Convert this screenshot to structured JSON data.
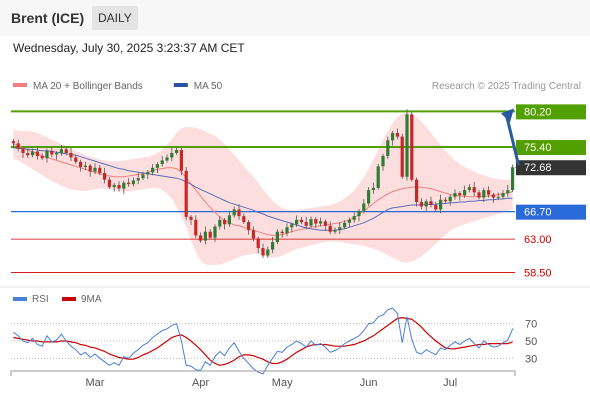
{
  "header": {
    "instrument": "Brent (ICE)",
    "interval": "DAILY",
    "timestamp": "Wednesday, July 30, 2025 3:23:37 AM CET"
  },
  "chart_data": [
    {
      "type": "line",
      "description": "candlestick price chart",
      "legend": [
        {
          "name": "MA 20 + Bollinger Bands",
          "color": "#f08080"
        },
        {
          "name": "MA 50",
          "color": "#2a52a0"
        }
      ],
      "credit": "Research © 2025 Trading Central",
      "x_labels": [
        "Mar",
        "Apr",
        "May",
        "Jun",
        "Jul"
      ],
      "ylim": [
        57.5,
        82
      ],
      "levels": [
        {
          "value": 80.2,
          "label": "80.20",
          "kind": "resistance",
          "color": "#52a000"
        },
        {
          "value": 75.4,
          "label": "75.40",
          "kind": "resistance",
          "color": "#52a000"
        },
        {
          "value": 72.68,
          "label": "72.68",
          "kind": "last",
          "color": "#333333"
        },
        {
          "value": 66.7,
          "label": "66.70",
          "kind": "pivot",
          "color": "#2a6ad8"
        },
        {
          "value": 63.0,
          "label": "63.00",
          "kind": "support",
          "color": "#cc0000"
        },
        {
          "value": 58.5,
          "label": "58.50",
          "kind": "support",
          "color": "#cc0000"
        }
      ],
      "forecast_arrow": {
        "from": 72.68,
        "to": 80.2
      },
      "closes": [
        75.9,
        75.2,
        74.6,
        74.3,
        74.8,
        74.2,
        73.9,
        74.9,
        74.4,
        74.6,
        75.1,
        74.6,
        74.0,
        73.4,
        72.7,
        72.9,
        72.1,
        72.6,
        71.9,
        71.0,
        70.0,
        70.3,
        69.8,
        70.6,
        70.4,
        70.9,
        71.2,
        71.7,
        72.0,
        72.6,
        73.1,
        73.6,
        74.0,
        74.6,
        75.0,
        72.2,
        66.0,
        65.6,
        63.5,
        62.8,
        64.0,
        63.2,
        64.7,
        65.6,
        65.0,
        66.2,
        67.0,
        66.1,
        65.3,
        64.2,
        63.1,
        61.8,
        60.8,
        61.6,
        62.6,
        64.0,
        63.8,
        64.6,
        65.0,
        65.6,
        65.3,
        64.8,
        65.7,
        65.1,
        65.4,
        64.8,
        64.0,
        64.2,
        64.6,
        65.2,
        65.6,
        66.1,
        66.8,
        67.8,
        69.6,
        69.9,
        72.8,
        74.2,
        76.3,
        77.3,
        76.8,
        71.4,
        79.8,
        71.0,
        68.0,
        67.4,
        68.1,
        67.6,
        67.0,
        68.3,
        68.1,
        68.7,
        69.2,
        68.9,
        69.6,
        70.0,
        69.3,
        68.6,
        69.6,
        69.0,
        68.6,
        68.7,
        69.2,
        69.6,
        72.68
      ],
      "ma20": [
        75.8,
        75.6,
        75.3,
        75.0,
        74.8,
        74.5,
        74.2,
        74.0,
        73.8,
        73.6,
        73.4,
        73.2,
        73.0,
        72.8,
        72.6,
        72.4,
        72.2,
        72.0,
        71.8,
        71.6,
        71.5,
        71.4,
        71.4,
        71.4,
        71.5,
        71.6,
        71.7,
        71.8,
        72.0,
        72.2,
        72.4,
        72.5,
        72.6,
        72.6,
        72.5,
        72.0,
        71.3,
        70.4,
        69.6,
        68.8,
        68.0,
        67.3,
        66.6,
        66.0,
        65.5,
        65.2,
        64.9,
        64.8,
        64.6,
        64.4,
        64.2,
        64.0,
        63.8,
        63.6,
        63.5,
        63.5,
        63.6,
        63.8,
        64.0,
        64.2,
        64.3,
        64.5,
        64.6,
        64.7,
        64.8,
        64.9,
        65.0,
        65.1,
        65.2,
        65.4,
        65.6,
        65.9,
        66.3,
        66.8,
        67.3,
        67.8,
        68.3,
        68.7,
        69.1,
        69.4,
        69.6,
        69.8,
        69.9,
        70.0,
        70.0,
        70.0,
        69.9,
        69.8,
        69.6,
        69.4,
        69.2,
        69.0,
        68.9,
        68.8,
        68.8,
        68.7,
        68.7,
        68.7,
        68.8,
        68.8,
        68.9,
        69.0,
        69.1,
        69.2,
        69.4
      ],
      "bb_upper": [
        77.8,
        77.6,
        77.6,
        77.6,
        77.5,
        77.3,
        77.0,
        76.7,
        76.4,
        76.1,
        75.8,
        75.5,
        75.2,
        74.9,
        74.6,
        74.3,
        74.1,
        73.9,
        73.7,
        73.6,
        73.5,
        73.5,
        73.5,
        73.6,
        73.7,
        73.8,
        73.9,
        74.0,
        74.1,
        74.3,
        74.6,
        75.1,
        75.7,
        76.4,
        77.3,
        77.9,
        78.1,
        78.1,
        78.0,
        77.8,
        77.5,
        77.2,
        76.9,
        76.4,
        75.8,
        75.1,
        74.4,
        73.6,
        72.8,
        72.1,
        71.4,
        70.6,
        69.7,
        68.9,
        68.2,
        67.6,
        67.2,
        67.0,
        66.9,
        66.9,
        67.0,
        67.1,
        67.2,
        67.3,
        67.4,
        67.5,
        67.6,
        67.8,
        68.1,
        68.5,
        69.0,
        69.6,
        70.4,
        71.4,
        72.5,
        73.7,
        75.0,
        76.4,
        77.6,
        78.6,
        79.4,
        79.9,
        80.0,
        79.8,
        79.4,
        78.8,
        78.1,
        77.3,
        76.5,
        75.7,
        74.9,
        74.2,
        73.6,
        73.1,
        72.7,
        72.4,
        72.1,
        71.8,
        71.6,
        71.4,
        71.2,
        71.1,
        71.0,
        71.0,
        71.1
      ],
      "bb_lower": [
        73.8,
        73.6,
        73.2,
        72.8,
        72.4,
        72.0,
        71.6,
        71.2,
        70.8,
        70.5,
        70.2,
        69.9,
        69.7,
        69.6,
        69.5,
        69.5,
        69.6,
        69.7,
        69.8,
        69.8,
        69.7,
        69.6,
        69.5,
        69.4,
        69.4,
        69.5,
        69.6,
        69.7,
        69.8,
        69.9,
        69.9,
        69.6,
        69.1,
        68.4,
        67.3,
        66.0,
        64.6,
        62.8,
        61.3,
        60.1,
        59.6,
        59.5,
        59.5,
        59.6,
        59.8,
        60.0,
        60.3,
        60.6,
        60.8,
        60.9,
        61.0,
        61.0,
        60.8,
        60.6,
        60.5,
        60.6,
        60.8,
        61.1,
        61.4,
        61.7,
        61.8,
        62.0,
        62.2,
        62.3,
        62.5,
        62.6,
        62.7,
        62.7,
        62.6,
        62.5,
        62.4,
        62.3,
        62.2,
        62.1,
        61.9,
        61.7,
        61.5,
        61.2,
        60.8,
        60.5,
        60.2,
        59.9,
        59.8,
        60.0,
        60.3,
        60.7,
        61.2,
        61.8,
        62.4,
        63.0,
        63.6,
        64.1,
        64.5,
        64.8,
        65.0,
        65.2,
        65.4,
        65.6,
        65.8,
        66.0,
        66.2,
        66.4,
        66.6,
        66.8,
        67.0
      ],
      "ma50": [
        75.3,
        75.2,
        75.2,
        75.1,
        75.1,
        75.0,
        74.9,
        74.9,
        74.8,
        74.7,
        74.6,
        74.5,
        74.4,
        74.3,
        74.1,
        73.9,
        73.7,
        73.5,
        73.3,
        73.1,
        72.9,
        72.7,
        72.5,
        72.4,
        72.2,
        72.1,
        72.0,
        71.9,
        71.8,
        71.7,
        71.6,
        71.5,
        71.4,
        71.3,
        71.2,
        71.0,
        70.7,
        70.4,
        70.0,
        69.7,
        69.4,
        69.1,
        68.8,
        68.5,
        68.2,
        67.9,
        67.7,
        67.5,
        67.3,
        67.1,
        66.9,
        66.6,
        66.4,
        66.1,
        65.9,
        65.7,
        65.5,
        65.3,
        65.1,
        64.9,
        64.7,
        64.5,
        64.4,
        64.3,
        64.2,
        64.2,
        64.2,
        64.2,
        64.3,
        64.4,
        64.6,
        64.8,
        65.0,
        65.2,
        65.5,
        65.8,
        66.2,
        66.6,
        67.0,
        67.2,
        67.3,
        67.4,
        67.5,
        67.6,
        67.6,
        67.6,
        67.7,
        67.7,
        67.7,
        67.8,
        67.8,
        67.9,
        67.9,
        68.0,
        68.0,
        68.1,
        68.1,
        68.2,
        68.2,
        68.3,
        68.3,
        68.4,
        68.4,
        68.5,
        68.5
      ]
    },
    {
      "type": "line",
      "description": "RSI oscillator",
      "legend": [
        {
          "name": "RSI",
          "color": "#4a7fd8"
        },
        {
          "name": "9MA",
          "color": "#cc0000"
        }
      ],
      "ylim": [
        20,
        80
      ],
      "ticks": [
        70,
        50,
        30
      ],
      "rsi": [
        60,
        56,
        50,
        48,
        53,
        46,
        44,
        56,
        49,
        51,
        58,
        50,
        44,
        40,
        34,
        37,
        31,
        35,
        30,
        26,
        22,
        25,
        22,
        32,
        30,
        36,
        40,
        45,
        48,
        54,
        58,
        62,
        64,
        68,
        70,
        50,
        22,
        21,
        17,
        16,
        26,
        22,
        32,
        38,
        33,
        42,
        48,
        38,
        30,
        24,
        18,
        14,
        12,
        22,
        30,
        38,
        37,
        43,
        46,
        50,
        47,
        43,
        50,
        45,
        47,
        43,
        37,
        39,
        42,
        47,
        50,
        53,
        56,
        62,
        70,
        71,
        78,
        80,
        86,
        88,
        82,
        48,
        78,
        52,
        37,
        35,
        40,
        37,
        34,
        42,
        40,
        45,
        49,
        46,
        50,
        53,
        47,
        42,
        50,
        46,
        43,
        44,
        48,
        51,
        64
      ],
      "ma9": [
        54,
        53,
        52,
        51,
        50,
        50,
        49,
        49,
        49,
        49,
        50,
        50,
        49,
        48,
        46,
        45,
        43,
        42,
        40,
        38,
        35,
        33,
        31,
        30,
        29,
        29,
        31,
        34,
        36,
        39,
        42,
        46,
        50,
        54,
        56,
        57,
        54,
        50,
        45,
        40,
        34,
        28,
        24,
        22,
        23,
        25,
        28,
        32,
        34,
        34,
        33,
        31,
        29,
        26,
        24,
        24,
        26,
        29,
        33,
        37,
        40,
        43,
        45,
        46,
        46,
        46,
        45,
        44,
        44,
        44,
        45,
        46,
        48,
        50,
        53,
        56,
        60,
        64,
        68,
        72,
        76,
        77,
        76,
        75,
        71,
        66,
        60,
        55,
        50,
        46,
        42,
        41,
        41,
        42,
        43,
        44,
        45,
        46,
        46,
        47,
        47,
        47,
        47,
        47,
        49
      ]
    }
  ]
}
